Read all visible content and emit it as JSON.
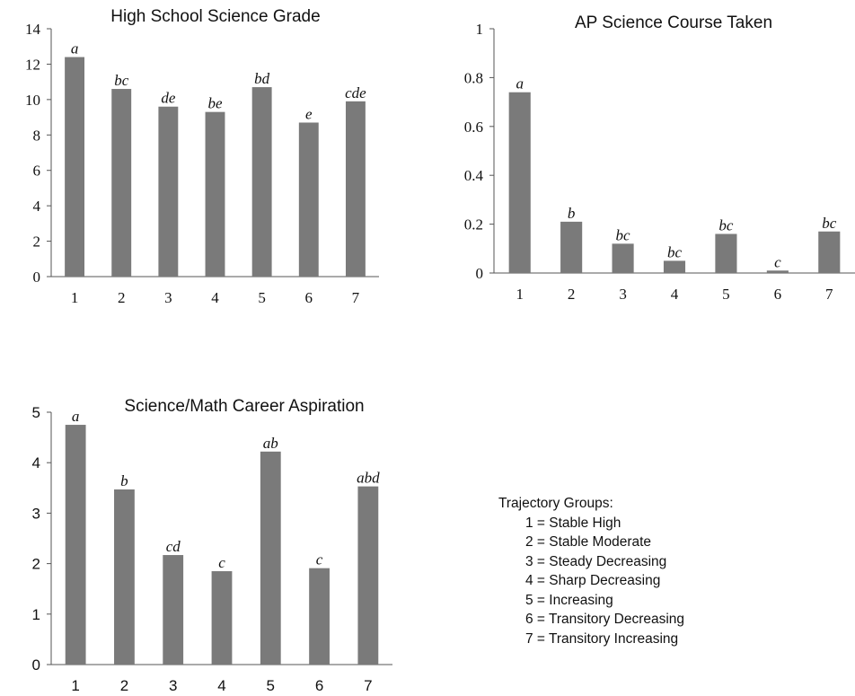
{
  "chart_data": [
    {
      "type": "bar",
      "title": "High School Science Grade",
      "categories": [
        "1",
        "2",
        "3",
        "4",
        "5",
        "6",
        "7"
      ],
      "values": [
        12.4,
        10.6,
        9.6,
        9.3,
        10.7,
        8.7,
        9.9
      ],
      "labels": [
        "a",
        "bc",
        "de",
        "be",
        "bd",
        "e",
        "cde"
      ],
      "ylim": [
        0,
        14
      ],
      "yticks": [
        "0",
        "2",
        "4",
        "6",
        "8",
        "10",
        "12",
        "14"
      ],
      "tick_font": "serif",
      "grid": false
    },
    {
      "type": "bar",
      "title": "AP Science Course Taken",
      "categories": [
        "1",
        "2",
        "3",
        "4",
        "5",
        "6",
        "7"
      ],
      "values": [
        0.74,
        0.21,
        0.12,
        0.05,
        0.16,
        0.01,
        0.17
      ],
      "labels": [
        "a",
        "b",
        "bc",
        "bc",
        "bc",
        "c",
        "bc"
      ],
      "ylim": [
        0,
        1
      ],
      "yticks": [
        "0",
        "0.2",
        "0.4",
        "0.6",
        "0.8",
        "1"
      ],
      "tick_font": "serif",
      "grid": false
    },
    {
      "type": "bar",
      "title": "Science/Math Career Aspiration",
      "categories": [
        "1",
        "2",
        "3",
        "4",
        "5",
        "6",
        "7"
      ],
      "values": [
        4.75,
        3.47,
        2.17,
        1.85,
        4.22,
        1.91,
        3.53
      ],
      "labels": [
        "a",
        "b",
        "cd",
        "c",
        "ab",
        "c",
        "abd"
      ],
      "ylim": [
        0,
        5
      ],
      "yticks": [
        "0",
        "1",
        "2",
        "3",
        "4",
        "5"
      ],
      "tick_font": "sans",
      "grid": false
    }
  ],
  "legend": {
    "title": "Trajectory Groups:",
    "items": [
      "1 = Stable High",
      "2 = Stable Moderate",
      "3 = Steady Decreasing",
      "4 = Sharp Decreasing",
      "5 = Increasing",
      "6 = Transitory Decreasing",
      "7 = Transitory Increasing"
    ]
  },
  "colors": {
    "bar": "#7a7a7a",
    "axis": "#555555",
    "text": "#111111"
  }
}
